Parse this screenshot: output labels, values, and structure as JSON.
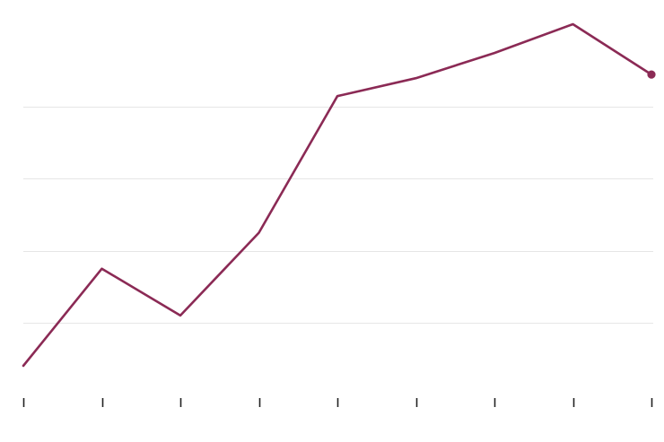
{
  "colors": {
    "series": "#8b2a55",
    "grid": "#e6e6e6",
    "axis": "#222222"
  },
  "chart_data": {
    "type": "line",
    "x": [
      1,
      2,
      3,
      4,
      5,
      6,
      7,
      8,
      9
    ],
    "series": [
      {
        "values": [
          -1.2,
          1.5,
          0.2,
          2.5,
          6.3,
          6.8,
          7.5,
          8.3,
          6.9
        ]
      }
    ],
    "ylim": [
      -1.2,
      8.3
    ],
    "gridlines_y": [
      0,
      2,
      4,
      6
    ],
    "grid": true,
    "legend": "none",
    "end_marker": true,
    "x_tick_labels_visible": false,
    "y_tick_labels_visible": false
  }
}
